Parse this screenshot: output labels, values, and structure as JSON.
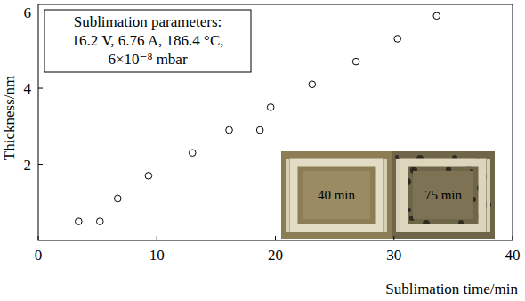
{
  "chart_data": {
    "type": "scatter",
    "x_label": "Sublimation time/min",
    "y_label": "Thickness/nm",
    "annotation": [
      "Sublimation parameters:",
      "16.2 V, 6.76 A, 186.4 °C,",
      "6×10⁻⁸ mbar"
    ],
    "x": [
      3.4,
      5.2,
      6.7,
      9.3,
      13.0,
      16.1,
      18.7,
      19.6,
      23.1,
      26.8,
      30.3,
      33.6
    ],
    "values": [
      0.5,
      0.5,
      1.1,
      1.7,
      2.3,
      2.9,
      2.9,
      3.5,
      4.1,
      4.7,
      5.3,
      5.9
    ],
    "marker": "circle-open",
    "color": "#000000",
    "xlim": [
      0,
      40
    ],
    "xticks": [
      0,
      10,
      20,
      30,
      40
    ],
    "ylim": [
      0,
      6.2
    ],
    "yticks": [
      2,
      4,
      6
    ],
    "insets": [
      "40 min",
      "75 min"
    ]
  }
}
